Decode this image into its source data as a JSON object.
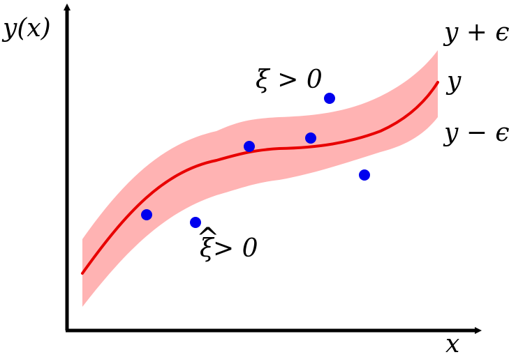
{
  "labels": {
    "y_axis": "y(x)",
    "x_axis": "x",
    "upper_band": "y + ϵ",
    "center_curve": "y",
    "lower_band": "y − ϵ",
    "xi_above": "ξ > 0",
    "xi_below_symbol": "ξ",
    "xi_below_hat": "^",
    "xi_below_rest": " > 0"
  },
  "colors": {
    "axis": "#000000",
    "curve": "#e80000",
    "band": "#ffb3b3",
    "points": "#0000ee"
  }
}
